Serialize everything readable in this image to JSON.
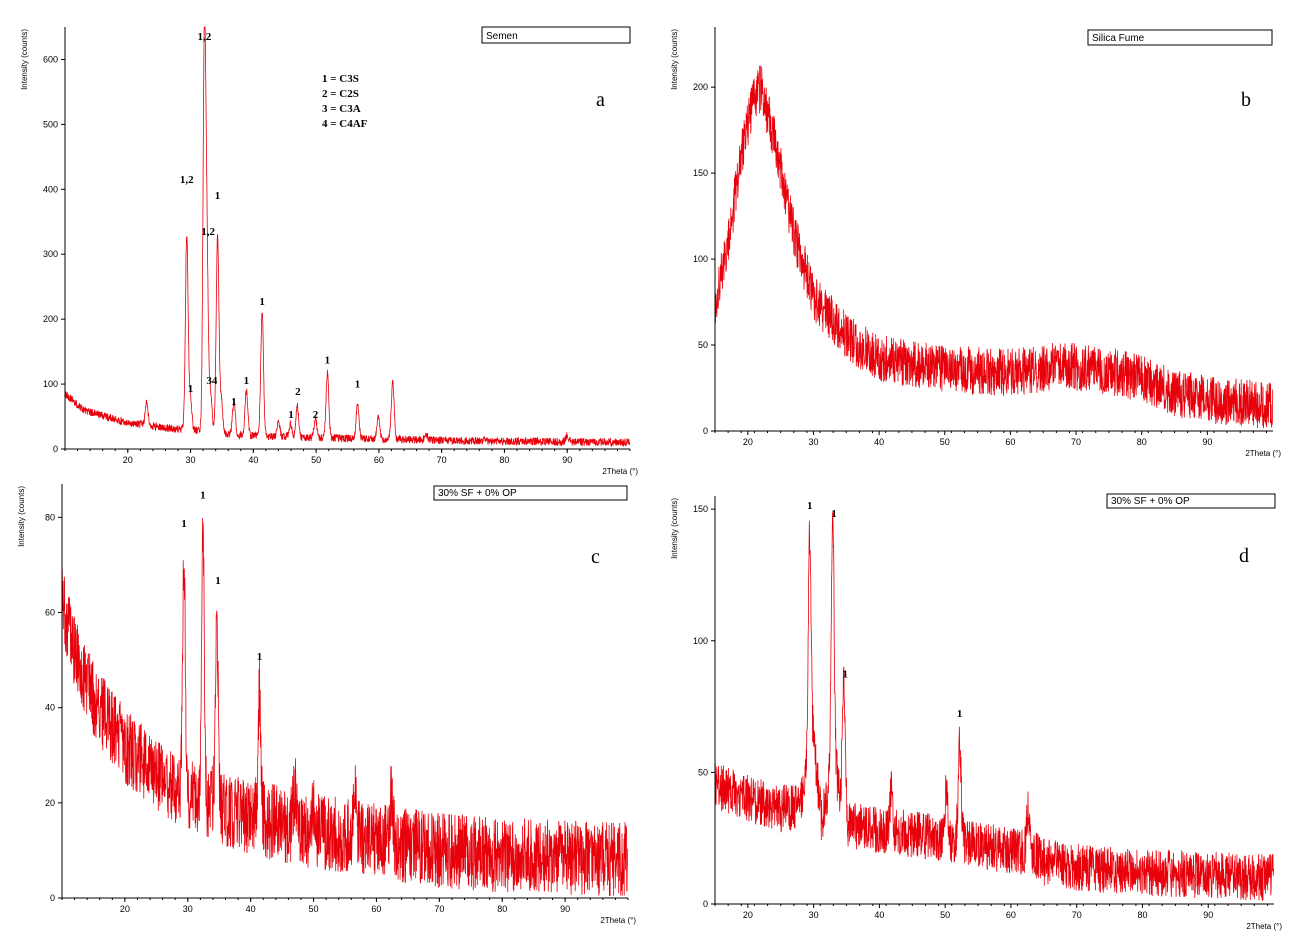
{
  "colors": {
    "series": "#e8000b",
    "axis": "#000000"
  },
  "chart_data": [
    {
      "id": "a",
      "type": "line",
      "panel_letter": "a",
      "legend": "Semen",
      "ylabel": "Intensity (counts)",
      "xlabel": "2Theta (°)",
      "xlim": [
        10,
        100
      ],
      "ylim": [
        0,
        650
      ],
      "xticks": [
        20,
        30,
        40,
        50,
        60,
        70,
        80,
        90
      ],
      "yticks": [
        0,
        100,
        200,
        300,
        400,
        500,
        600
      ],
      "baseline": [
        [
          10,
          85
        ],
        [
          13,
          60
        ],
        [
          20,
          40
        ],
        [
          30,
          28
        ],
        [
          40,
          20
        ],
        [
          60,
          15
        ],
        [
          80,
          12
        ],
        [
          100,
          10
        ]
      ],
      "noise": 6,
      "peaks": [
        [
          23,
          35
        ],
        [
          29.4,
          300
        ],
        [
          30,
          45
        ],
        [
          32.2,
          590
        ],
        [
          32.6,
          260
        ],
        [
          33.2,
          60
        ],
        [
          34.3,
          300
        ],
        [
          34.9,
          50
        ],
        [
          36.9,
          50
        ],
        [
          38.9,
          70
        ],
        [
          41.4,
          190
        ],
        [
          44,
          25
        ],
        [
          45.9,
          20
        ],
        [
          47,
          50
        ],
        [
          49.9,
          30
        ],
        [
          51.8,
          100
        ],
        [
          56.6,
          55
        ],
        [
          59.9,
          35
        ],
        [
          62.2,
          90
        ],
        [
          67.5,
          10
        ],
        [
          90,
          10
        ]
      ],
      "peak_labels": [
        {
          "x": 32.2,
          "y": 630,
          "text": "1,2"
        },
        {
          "x": 29.4,
          "y": 410,
          "text": "1,2"
        },
        {
          "x": 32.8,
          "y": 330,
          "text": "1,2"
        },
        {
          "x": 34.3,
          "y": 385,
          "text": "1"
        },
        {
          "x": 41.4,
          "y": 222,
          "text": "1"
        },
        {
          "x": 30,
          "y": 88,
          "text": "1"
        },
        {
          "x": 33.4,
          "y": 100,
          "text": "34"
        },
        {
          "x": 36.9,
          "y": 68,
          "text": "1"
        },
        {
          "x": 38.9,
          "y": 100,
          "text": "1"
        },
        {
          "x": 46,
          "y": 48,
          "text": "1"
        },
        {
          "x": 47.1,
          "y": 83,
          "text": "2"
        },
        {
          "x": 49.9,
          "y": 48,
          "text": "2"
        },
        {
          "x": 51.8,
          "y": 132,
          "text": "1"
        },
        {
          "x": 56.6,
          "y": 95,
          "text": "1"
        }
      ],
      "key": [
        "1 = C3S",
        "2 = C2S",
        "3 = C3A",
        "4 = C4AF"
      ]
    },
    {
      "id": "b",
      "type": "line",
      "panel_letter": "b",
      "legend": "Silica Fume",
      "ylabel": "Intensity (counts)",
      "xlabel": "2Theta (°)",
      "xlim": [
        15,
        100
      ],
      "ylim": [
        0,
        235
      ],
      "xticks": [
        20,
        30,
        40,
        50,
        60,
        70,
        80,
        90
      ],
      "yticks": [
        0,
        50,
        100,
        150,
        200
      ],
      "baseline": [
        [
          15,
          75
        ],
        [
          17,
          110
        ],
        [
          19,
          160
        ],
        [
          21,
          195
        ],
        [
          22,
          200
        ],
        [
          24,
          170
        ],
        [
          27,
          115
        ],
        [
          30,
          78
        ],
        [
          35,
          55
        ],
        [
          40,
          42
        ],
        [
          50,
          36
        ],
        [
          60,
          34
        ],
        [
          68,
          38
        ],
        [
          75,
          35
        ],
        [
          80,
          30
        ],
        [
          85,
          22
        ],
        [
          90,
          18
        ],
        [
          100,
          15
        ]
      ],
      "noise": 14,
      "peaks": [],
      "peak_labels": [],
      "key": []
    },
    {
      "id": "c",
      "type": "line",
      "panel_letter": "c",
      "legend": "30% SF + 0% OP",
      "ylabel": "Intensity (counts)",
      "xlabel": "2Theta (°)",
      "xlim": [
        10,
        100
      ],
      "ylim": [
        0,
        87
      ],
      "xticks": [
        20,
        30,
        40,
        50,
        60,
        70,
        80,
        90
      ],
      "yticks": [
        0,
        20,
        40,
        60,
        80
      ],
      "baseline": [
        [
          10,
          62
        ],
        [
          12,
          52
        ],
        [
          15,
          42
        ],
        [
          20,
          32
        ],
        [
          25,
          26
        ],
        [
          30,
          22
        ],
        [
          35,
          19
        ],
        [
          40,
          17
        ],
        [
          50,
          14
        ],
        [
          60,
          12
        ],
        [
          70,
          10
        ],
        [
          80,
          9
        ],
        [
          100,
          8
        ]
      ],
      "noise": 8,
      "peaks": [
        [
          29.4,
          48
        ],
        [
          32.4,
          58
        ],
        [
          34.6,
          42
        ],
        [
          41.4,
          28
        ],
        [
          47,
          8
        ],
        [
          50,
          6
        ],
        [
          56.6,
          8
        ],
        [
          62.4,
          10
        ]
      ],
      "peak_labels": [
        {
          "x": 29.4,
          "y": 78,
          "text": "1"
        },
        {
          "x": 32.4,
          "y": 84,
          "text": "1"
        },
        {
          "x": 34.8,
          "y": 66,
          "text": "1"
        },
        {
          "x": 41.4,
          "y": 50,
          "text": "1"
        }
      ],
      "key": []
    },
    {
      "id": "d",
      "type": "line",
      "panel_letter": "d",
      "legend": "30% SF + 0% OP",
      "ylabel": "Intensity (counts)",
      "xlabel": "2Theta (°)",
      "xlim": [
        15,
        100
      ],
      "ylim": [
        0,
        155
      ],
      "xticks": [
        20,
        30,
        40,
        50,
        60,
        70,
        80,
        90
      ],
      "yticks": [
        0,
        50,
        100,
        150
      ],
      "baseline": [
        [
          15,
          45
        ],
        [
          20,
          40
        ],
        [
          25,
          36
        ],
        [
          28,
          38
        ],
        [
          30,
          60
        ],
        [
          31.2,
          32
        ],
        [
          33,
          55
        ],
        [
          35,
          30
        ],
        [
          40,
          28
        ],
        [
          50,
          25
        ],
        [
          60,
          20
        ],
        [
          63,
          20
        ],
        [
          65,
          16
        ],
        [
          70,
          14
        ],
        [
          80,
          12
        ],
        [
          100,
          10
        ]
      ],
      "noise": 9,
      "peaks": [
        [
          29.4,
          88
        ],
        [
          32.9,
          92
        ],
        [
          34.6,
          48
        ],
        [
          41.8,
          14
        ],
        [
          50.2,
          18
        ],
        [
          52.2,
          38
        ],
        [
          62.6,
          14
        ]
      ],
      "peak_labels": [
        {
          "x": 29.4,
          "y": 150,
          "text": "1"
        },
        {
          "x": 33.1,
          "y": 147,
          "text": "1"
        },
        {
          "x": 34.8,
          "y": 86,
          "text": "1"
        },
        {
          "x": 52.2,
          "y": 71,
          "text": "1"
        }
      ],
      "key": []
    }
  ]
}
